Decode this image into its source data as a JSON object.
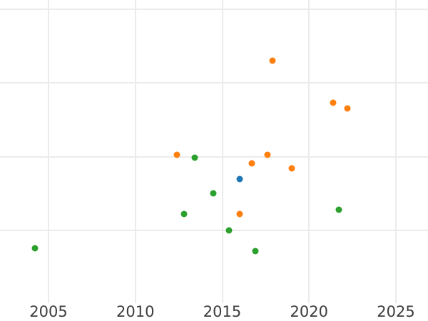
{
  "chart": {
    "background": "#ffffff",
    "grid_color": "#ebebeb",
    "tick_label_color": "#3d3d3d"
  },
  "chart_data": {
    "type": "scatter",
    "title": "",
    "xlabel": "",
    "ylabel": "",
    "x_ticks": [
      2005,
      2010,
      2015,
      2020,
      2025
    ],
    "x_tick_labels": [
      "2005",
      "2010",
      "2015",
      "2020",
      "2025"
    ],
    "xlim": [
      2002.2,
      2026.8
    ],
    "ylim_units": [
      0,
      4.12
    ],
    "y_gridlines": [
      1,
      2,
      3,
      4
    ],
    "y_axis_note": "y-axis tick labels fall outside the visible crop; y values given in gridline units (bottom plot edge = 0, one gridline interval = 1)",
    "grid": "on",
    "legend_position": "none visible",
    "series": [
      {
        "name": "blue",
        "color": "#1f77b4",
        "points": [
          {
            "x": 2016.0,
            "y": 1.7
          }
        ]
      },
      {
        "name": "orange",
        "color": "#ff7f0e",
        "points": [
          {
            "x": 2012.4,
            "y": 2.02
          },
          {
            "x": 2016.0,
            "y": 1.22
          },
          {
            "x": 2016.7,
            "y": 1.91
          },
          {
            "x": 2017.6,
            "y": 2.02
          },
          {
            "x": 2017.9,
            "y": 3.3
          },
          {
            "x": 2019.0,
            "y": 1.84
          },
          {
            "x": 2021.4,
            "y": 2.73
          },
          {
            "x": 2022.2,
            "y": 2.65
          }
        ]
      },
      {
        "name": "green",
        "color": "#2ca02c",
        "points": [
          {
            "x": 2004.2,
            "y": 0.76
          },
          {
            "x": 2012.8,
            "y": 1.22
          },
          {
            "x": 2013.4,
            "y": 1.99
          },
          {
            "x": 2014.5,
            "y": 1.5
          },
          {
            "x": 2015.4,
            "y": 1.0
          },
          {
            "x": 2016.9,
            "y": 0.72
          },
          {
            "x": 2021.7,
            "y": 1.28
          }
        ]
      }
    ]
  }
}
